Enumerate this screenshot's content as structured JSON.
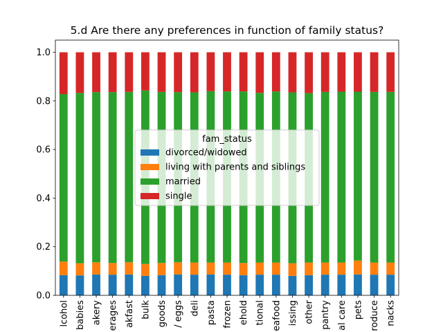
{
  "chart_data": {
    "type": "bar",
    "stacked": true,
    "title": "5.d Are there any preferences in function of family status?",
    "xlabel": "",
    "ylabel": "",
    "ylim": [
      0,
      1.05
    ],
    "yticks": [
      "0.0",
      "0.2",
      "0.4",
      "0.6",
      "0.8",
      "1.0"
    ],
    "categories": [
      "lcohol",
      "babies",
      "akery",
      "erages",
      "akfast",
      "bulk",
      "goods",
      "/ eggs",
      "deli",
      "pasta",
      "frozen",
      "ehold",
      "tional",
      "eafood",
      "issing",
      "other",
      "pantry",
      "al care",
      "pets",
      "roduce",
      "nacks"
    ],
    "legend_title": "fam_status",
    "legend_position": "center",
    "series": [
      {
        "name": "divorced/widowed",
        "color": "#1f77b4",
        "values": [
          0.083,
          0.082,
          0.086,
          0.085,
          0.086,
          0.08,
          0.083,
          0.086,
          0.085,
          0.086,
          0.085,
          0.083,
          0.085,
          0.085,
          0.08,
          0.083,
          0.085,
          0.085,
          0.086,
          0.085,
          0.085
        ]
      },
      {
        "name": "living with parents and siblings",
        "color": "#ff7f0e",
        "values": [
          0.056,
          0.05,
          0.05,
          0.048,
          0.05,
          0.049,
          0.05,
          0.05,
          0.05,
          0.049,
          0.05,
          0.05,
          0.05,
          0.05,
          0.052,
          0.052,
          0.05,
          0.05,
          0.057,
          0.05,
          0.05
        ]
      },
      {
        "name": "married",
        "color": "#2ca02c",
        "values": [
          0.689,
          0.701,
          0.7,
          0.703,
          0.701,
          0.714,
          0.704,
          0.7,
          0.7,
          0.705,
          0.704,
          0.706,
          0.698,
          0.704,
          0.703,
          0.697,
          0.702,
          0.703,
          0.695,
          0.702,
          0.702
        ]
      },
      {
        "name": "single",
        "color": "#d62728",
        "values": [
          0.172,
          0.167,
          0.164,
          0.164,
          0.163,
          0.157,
          0.163,
          0.164,
          0.165,
          0.16,
          0.161,
          0.161,
          0.167,
          0.161,
          0.165,
          0.168,
          0.163,
          0.162,
          0.162,
          0.163,
          0.163
        ]
      }
    ]
  }
}
